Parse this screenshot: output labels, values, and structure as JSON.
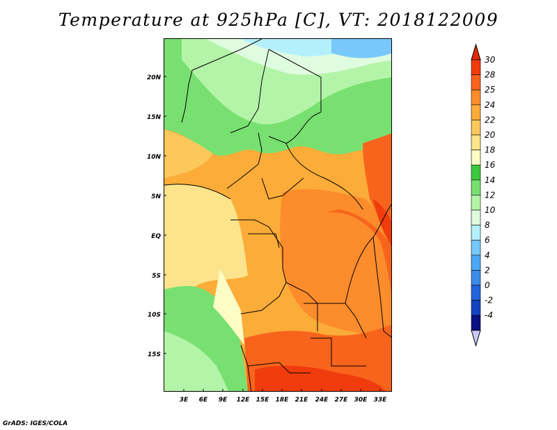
{
  "title": "Temperature at 925hPa [C], VT: 2018122009",
  "credit": "GrADS: IGES/COLA",
  "lat_labels": [
    "20N",
    "15N",
    "10N",
    "5N",
    "EQ",
    "5S",
    "10S",
    "15S"
  ],
  "lon_labels": [
    "3E",
    "6E",
    "9E",
    "12E",
    "15E",
    "18E",
    "21E",
    "24E",
    "27E",
    "30E",
    "33E"
  ],
  "colorbar": {
    "labels": [
      "30",
      "28",
      "25",
      "24",
      "22",
      "20",
      "18",
      "16",
      "14",
      "12",
      "10",
      "8",
      "6",
      "4",
      "2",
      "0",
      "-2",
      "-4"
    ],
    "colors": [
      "#f03c0c",
      "#f8641c",
      "#fc8c2c",
      "#fcac38",
      "#fcc85c",
      "#fce48c",
      "#fcfcc4",
      "#3cc83c",
      "#78e070",
      "#b4f4a8",
      "#e0fce0",
      "#b4f0fc",
      "#78c8fc",
      "#4ca8f4",
      "#3c8ce8",
      "#2464dc",
      "#1444c0",
      "#0c1080"
    ],
    "arrow_top": "#e02c00",
    "arrow_bottom": "#c8c8f4"
  }
}
